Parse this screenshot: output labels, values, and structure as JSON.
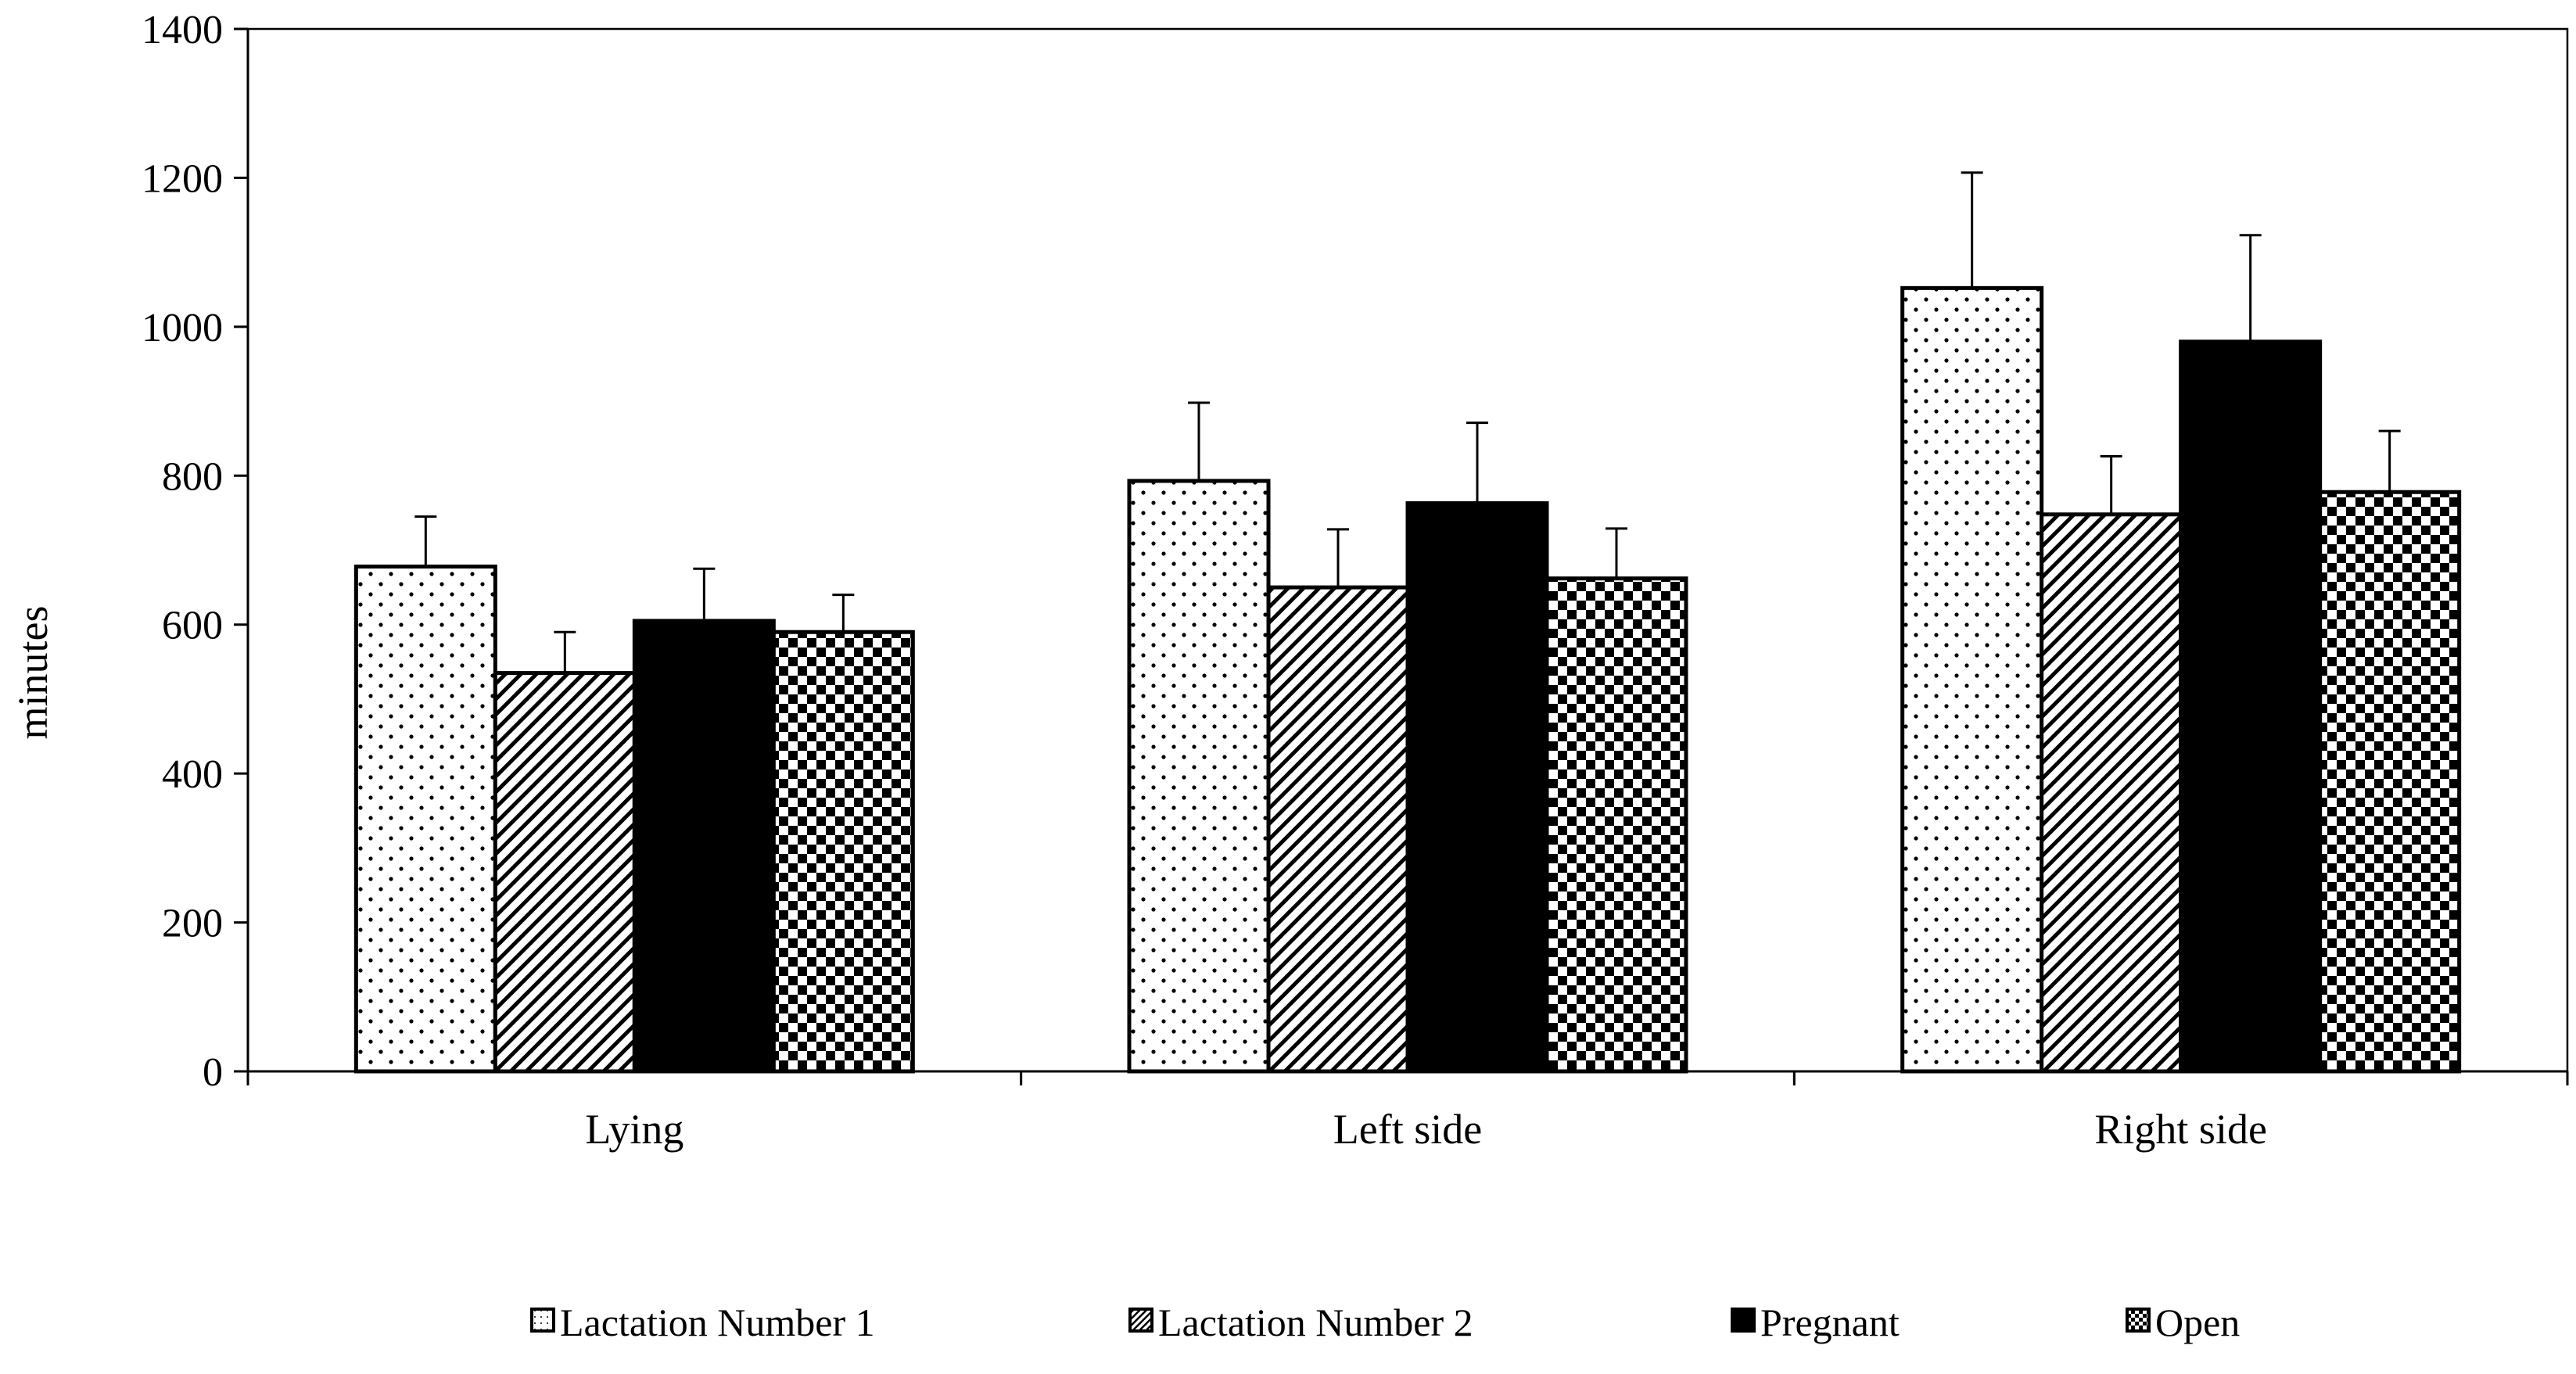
{
  "chart_data": {
    "type": "bar",
    "title": "",
    "xlabel": "",
    "ylabel": "minutes",
    "ylim": [
      0,
      1400
    ],
    "yticks": [
      0,
      200,
      400,
      600,
      800,
      1000,
      1200,
      1400
    ],
    "categories": [
      "Lying",
      "Left side",
      "Right side"
    ],
    "series": [
      {
        "name": "Lactation Number 1",
        "pattern": "dots",
        "values": [
          678,
          793,
          1052
        ],
        "errors": [
          67,
          105,
          155
        ]
      },
      {
        "name": "Lactation Number 2",
        "pattern": "diagonal-hatch",
        "values": [
          535,
          650,
          748
        ],
        "errors": [
          55,
          78,
          78
        ]
      },
      {
        "name": "Pregnant",
        "pattern": "solid",
        "values": [
          605,
          763,
          980
        ],
        "errors": [
          70,
          108,
          143
        ]
      },
      {
        "name": "Open",
        "pattern": "checker",
        "values": [
          590,
          662,
          778
        ],
        "errors": [
          50,
          67,
          82
        ]
      }
    ],
    "error_bars": true,
    "grid": false,
    "legend_position": "bottom",
    "colors": {
      "axis": "#000000",
      "fill": "#000000",
      "background": "#ffffff"
    }
  }
}
